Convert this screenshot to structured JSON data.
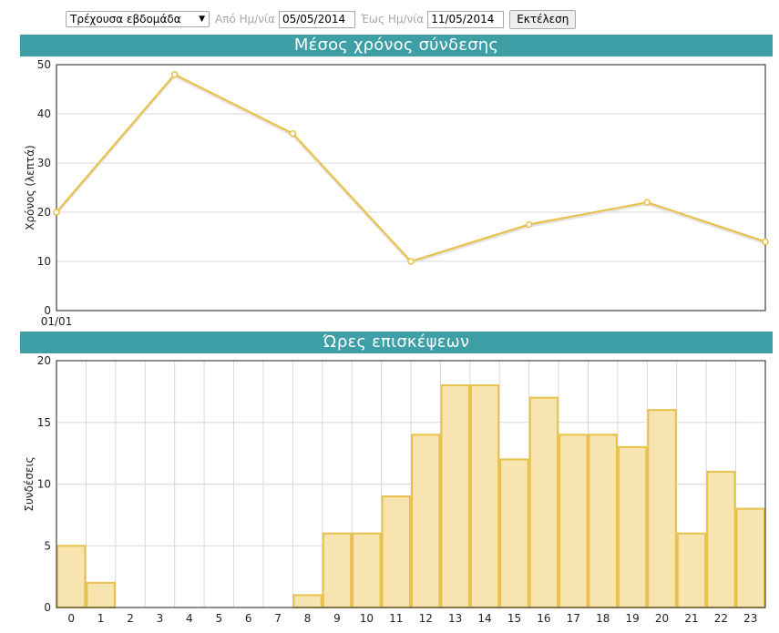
{
  "toolbar": {
    "period_select": "Τρέχουσα εβδομάδα",
    "from_label": "Από Ημ/νία",
    "from_value": "05/05/2014",
    "to_label": "Έως Ημ/νία",
    "to_value": "11/05/2014",
    "run_label": "Εκτέλεση"
  },
  "colors": {
    "header_bg": "#3e9fa6",
    "series_stroke": "#e8c14a",
    "bar_fill": "#f8e4b1",
    "grid": "#d9d9d9"
  },
  "chart_data": [
    {
      "type": "line",
      "title": "Μέσος χρόνος σύνδεσης",
      "ylabel": "Χρόνος (λεπτά)",
      "xlabel": "",
      "x_tick_labels": [
        "01/01"
      ],
      "values": [
        20,
        48,
        36,
        10,
        17.5,
        22,
        14
      ],
      "ylim": [
        0,
        50
      ],
      "yticks": [
        0,
        10,
        20,
        30,
        40,
        50
      ],
      "grid": true
    },
    {
      "type": "bar",
      "title": "Ώρες επισκέψεων",
      "ylabel": "Συνδέσεις",
      "xlabel": "",
      "categories": [
        "0",
        "1",
        "2",
        "3",
        "4",
        "5",
        "6",
        "7",
        "8",
        "9",
        "10",
        "11",
        "12",
        "13",
        "14",
        "15",
        "16",
        "17",
        "18",
        "19",
        "20",
        "21",
        "22",
        "23"
      ],
      "values": [
        5,
        2,
        0,
        0,
        0,
        0,
        0,
        0,
        1,
        6,
        6,
        9,
        14,
        18,
        18,
        12,
        17,
        14,
        14,
        13,
        16,
        6,
        11,
        8
      ],
      "ylim": [
        0,
        20
      ],
      "yticks": [
        0,
        5,
        10,
        15,
        20
      ],
      "grid": true
    }
  ]
}
